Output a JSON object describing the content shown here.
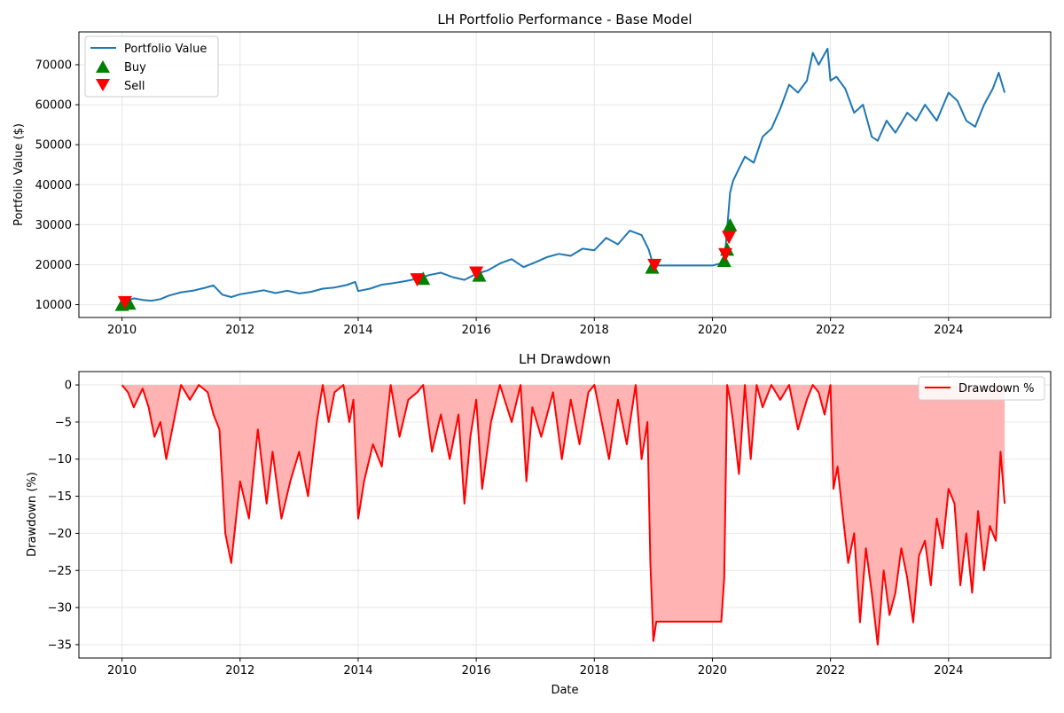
{
  "chart_data": [
    {
      "type": "line",
      "title": "LH Portfolio Performance - Base Model",
      "xlabel": "",
      "ylabel": "Portfolio Value ($)",
      "xlim": [
        2009.27,
        2025.73
      ],
      "ylim": [
        6800,
        78200
      ],
      "x_ticks": [
        2010,
        2012,
        2014,
        2016,
        2018,
        2020,
        2022,
        2024
      ],
      "x_tick_labels": [
        "2010",
        "2012",
        "2014",
        "2016",
        "2018",
        "2020",
        "2022",
        "2024"
      ],
      "y_ticks": [
        10000,
        20000,
        30000,
        40000,
        50000,
        60000,
        70000
      ],
      "y_tick_labels": [
        "10000",
        "20000",
        "30000",
        "40000",
        "50000",
        "60000",
        "70000"
      ],
      "grid": true,
      "legend_position": "top-left",
      "legend": [
        "Portfolio Value",
        "Buy",
        "Sell"
      ],
      "colors": {
        "line": "#1f77b4",
        "buy": "#008000",
        "sell": "#ff0000"
      },
      "series": [
        {
          "name": "Portfolio Value",
          "x": [
            2010.0,
            2010.08,
            2010.2,
            2010.35,
            2010.5,
            2010.65,
            2010.8,
            2011.0,
            2011.2,
            2011.4,
            2011.55,
            2011.7,
            2011.85,
            2012.0,
            2012.2,
            2012.4,
            2012.6,
            2012.8,
            2013.0,
            2013.2,
            2013.4,
            2013.6,
            2013.8,
            2013.95,
            2014.0,
            2014.2,
            2014.4,
            2014.6,
            2014.8,
            2015.0,
            2015.2,
            2015.4,
            2015.6,
            2015.8,
            2016.0,
            2016.2,
            2016.4,
            2016.6,
            2016.8,
            2017.0,
            2017.2,
            2017.4,
            2017.6,
            2017.8,
            2018.0,
            2018.2,
            2018.4,
            2018.6,
            2018.8,
            2018.92,
            2019.0,
            2019.5,
            2020.0,
            2020.2,
            2020.25,
            2020.3,
            2020.35,
            2020.45,
            2020.55,
            2020.7,
            2020.85,
            2021.0,
            2021.15,
            2021.3,
            2021.45,
            2021.6,
            2021.7,
            2021.8,
            2021.95,
            2022.0,
            2022.1,
            2022.25,
            2022.4,
            2022.55,
            2022.7,
            2022.8,
            2022.95,
            2023.1,
            2023.3,
            2023.45,
            2023.6,
            2023.8,
            2024.0,
            2024.15,
            2024.3,
            2024.45,
            2024.6,
            2024.75,
            2024.85,
            2024.95
          ],
          "y": [
            10500,
            10900,
            11600,
            11200,
            11000,
            11400,
            12300,
            13100,
            13500,
            14200,
            14800,
            12500,
            11900,
            12600,
            13100,
            13600,
            12900,
            13500,
            12800,
            13200,
            14000,
            14300,
            14900,
            15700,
            13400,
            14000,
            15000,
            15400,
            15900,
            16500,
            17400,
            18000,
            16900,
            16200,
            17700,
            18600,
            20300,
            21400,
            19400,
            20600,
            21900,
            22700,
            22200,
            24000,
            23600,
            26700,
            25100,
            28500,
            27400,
            23800,
            19800,
            19800,
            19800,
            20500,
            29000,
            38000,
            41000,
            44000,
            47000,
            45500,
            52000,
            54000,
            59000,
            65000,
            63000,
            66000,
            73000,
            70000,
            74000,
            66000,
            67000,
            64000,
            58000,
            60000,
            52000,
            51000,
            56000,
            53000,
            58000,
            56000,
            60000,
            56000,
            63000,
            61000,
            56000,
            54500,
            60000,
            64000,
            68000,
            63000
          ]
        }
      ],
      "buy_markers": [
        {
          "x": 2010.0,
          "y": 10000
        },
        {
          "x": 2010.12,
          "y": 10300
        },
        {
          "x": 2015.1,
          "y": 16500
        },
        {
          "x": 2016.05,
          "y": 17300
        },
        {
          "x": 2018.98,
          "y": 19300
        },
        {
          "x": 2020.2,
          "y": 21000
        },
        {
          "x": 2020.25,
          "y": 23800
        },
        {
          "x": 2020.3,
          "y": 29900
        }
      ],
      "sell_markers": [
        {
          "x": 2010.05,
          "y": 10600
        },
        {
          "x": 2015.0,
          "y": 16300
        },
        {
          "x": 2016.0,
          "y": 18000
        },
        {
          "x": 2019.02,
          "y": 19900
        },
        {
          "x": 2020.22,
          "y": 22600
        },
        {
          "x": 2020.28,
          "y": 26900
        }
      ]
    },
    {
      "type": "area",
      "title": "LH Drawdown",
      "xlabel": "Date",
      "ylabel": "Drawdown (%)",
      "xlim": [
        2009.27,
        2025.73
      ],
      "ylim": [
        -36.8,
        1.8
      ],
      "x_ticks": [
        2010,
        2012,
        2014,
        2016,
        2018,
        2020,
        2022,
        2024
      ],
      "x_tick_labels": [
        "2010",
        "2012",
        "2014",
        "2016",
        "2018",
        "2020",
        "2022",
        "2024"
      ],
      "y_ticks": [
        0,
        -5,
        -10,
        -15,
        -20,
        -25,
        -30,
        -35
      ],
      "y_tick_labels": [
        "0",
        "−5",
        "−10",
        "−15",
        "−20",
        "−25",
        "−30",
        "−35"
      ],
      "grid": true,
      "legend_position": "top-right",
      "legend": [
        "Drawdown %"
      ],
      "colors": {
        "line": "#ff0000",
        "fill": "#ffb3b3"
      },
      "series": [
        {
          "name": "Drawdown %",
          "x": [
            2010.0,
            2010.1,
            2010.2,
            2010.35,
            2010.45,
            2010.55,
            2010.65,
            2010.75,
            2010.85,
            2011.0,
            2011.15,
            2011.3,
            2011.45,
            2011.55,
            2011.65,
            2011.75,
            2011.85,
            2012.0,
            2012.15,
            2012.3,
            2012.45,
            2012.55,
            2012.7,
            2012.85,
            2013.0,
            2013.15,
            2013.3,
            2013.4,
            2013.5,
            2013.6,
            2013.75,
            2013.85,
            2013.92,
            2014.0,
            2014.1,
            2014.25,
            2014.4,
            2014.55,
            2014.7,
            2014.85,
            2015.0,
            2015.1,
            2015.25,
            2015.4,
            2015.55,
            2015.7,
            2015.8,
            2015.9,
            2016.0,
            2016.1,
            2016.25,
            2016.4,
            2016.6,
            2016.75,
            2016.85,
            2016.95,
            2017.1,
            2017.3,
            2017.45,
            2017.6,
            2017.75,
            2017.9,
            2018.0,
            2018.1,
            2018.25,
            2018.4,
            2018.55,
            2018.7,
            2018.8,
            2018.9,
            2018.95,
            2019.0,
            2019.05,
            2020.15,
            2020.2,
            2020.25,
            2020.3,
            2020.35,
            2020.45,
            2020.55,
            2020.65,
            2020.75,
            2020.85,
            2021.0,
            2021.15,
            2021.3,
            2021.45,
            2021.6,
            2021.7,
            2021.8,
            2021.9,
            2022.0,
            2022.05,
            2022.12,
            2022.2,
            2022.3,
            2022.4,
            2022.5,
            2022.6,
            2022.7,
            2022.8,
            2022.9,
            2023.0,
            2023.1,
            2023.2,
            2023.3,
            2023.4,
            2023.5,
            2023.6,
            2023.7,
            2023.8,
            2023.9,
            2024.0,
            2024.1,
            2024.2,
            2024.3,
            2024.4,
            2024.5,
            2024.6,
            2024.7,
            2024.8,
            2024.88,
            2024.95
          ],
          "y": [
            0,
            -1,
            -3,
            -0.5,
            -3,
            -7,
            -5,
            -10,
            -6,
            0,
            -2,
            0,
            -1,
            -4,
            -6,
            -20,
            -24,
            -13,
            -18,
            -6,
            -16,
            -9,
            -18,
            -13,
            -9,
            -15,
            -5,
            0,
            -5,
            -1,
            0,
            -5,
            -2,
            -18,
            -13,
            -8,
            -11,
            0,
            -7,
            -2,
            -1,
            0,
            -9,
            -4,
            -10,
            -4,
            -16,
            -7,
            -2,
            -14,
            -5,
            0,
            -5,
            0,
            -13,
            -3,
            -7,
            -1,
            -10,
            -2,
            -8,
            -1,
            0,
            -4,
            -10,
            -2,
            -8,
            0,
            -10,
            -5,
            -24,
            -34.5,
            -31.9,
            -31.9,
            -26,
            0,
            -2,
            -5,
            -12,
            0,
            -10,
            0,
            -3,
            0,
            -2,
            0,
            -6,
            -2,
            0,
            -1,
            -4,
            0,
            -14,
            -11,
            -17,
            -24,
            -20,
            -32,
            -22,
            -28,
            -35,
            -25,
            -31,
            -28,
            -22,
            -26,
            -32,
            -23,
            -21,
            -27,
            -18,
            -22,
            -14,
            -16,
            -27,
            -20,
            -28,
            -17,
            -25,
            -19,
            -21,
            -9,
            -16
          ]
        }
      ]
    }
  ]
}
